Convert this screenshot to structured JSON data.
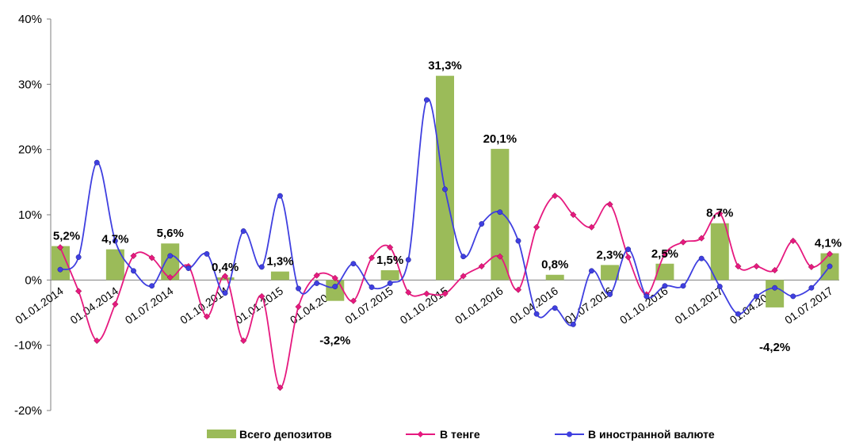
{
  "chart_data": {
    "type": "bar+line",
    "title": "",
    "xlabel": "",
    "ylabel": "",
    "ylim": [
      -20,
      40
    ],
    "y_ticks": [
      "-20%",
      "-10%",
      "0%",
      "10%",
      "20%",
      "30%",
      "40%"
    ],
    "x_tick_labels": [
      "01.01.2014",
      "01.04.2014",
      "01.07.2014",
      "01.10.2014",
      "01.01.2015",
      "01.04.2015",
      "01.07.2015",
      "01.10.2015",
      "01.01.2016",
      "01.04.2016",
      "01.07.2016",
      "01.10.2016",
      "01.01.2017",
      "01.04.2017",
      "01.07.2017"
    ],
    "grid": false,
    "legend_position": "bottom",
    "colors": {
      "bars": "#9BBB59",
      "tenge": "#E6197F",
      "foreign": "#3F3FE0"
    },
    "bars": {
      "name": "Всего депозитов",
      "labels": [
        "5,2%",
        "4,7%",
        "5,6%",
        "0,4%",
        "1,3%",
        "-3,2%",
        "1,5%",
        "31,3%",
        "20,1%",
        "0,8%",
        "2,3%",
        "2,5%",
        "8,7%",
        "-4,2%",
        "4,1%"
      ],
      "values": [
        5.2,
        4.7,
        5.6,
        0.4,
        1.3,
        -3.2,
        1.5,
        31.3,
        20.1,
        0.8,
        2.3,
        2.5,
        8.7,
        -4.2,
        4.1
      ]
    },
    "series": [
      {
        "name": "В тенге",
        "values": [
          5.0,
          -1.7,
          -9.3,
          -3.7,
          3.7,
          3.4,
          0.4,
          2.1,
          -5.6,
          0.6,
          -9.3,
          -2.5,
          -16.5,
          -4.1,
          0.7,
          0.3,
          -3.2,
          3.4,
          5.0,
          -1.9,
          -2.1,
          -2.1,
          0.6,
          2.1,
          3.6,
          -1.5,
          8.1,
          12.9,
          10.0,
          8.1,
          11.6,
          3.5,
          -2.2,
          4.0,
          5.8,
          6.4,
          10.2,
          2.1,
          2.1,
          1.5,
          6.0,
          2.0,
          4.0
        ]
      },
      {
        "name": "В иностранной валюте",
        "values": [
          1.6,
          3.5,
          18.0,
          6.0,
          1.4,
          -0.9,
          3.7,
          1.8,
          4.0,
          -2.0,
          7.5,
          2.0,
          12.9,
          -1.3,
          -0.5,
          -1.0,
          2.5,
          -1.1,
          -0.5,
          3.1,
          27.6,
          13.9,
          3.6,
          8.6,
          10.4,
          6.0,
          -5.2,
          -4.3,
          -6.8,
          1.4,
          -2.2,
          4.7,
          -2.5,
          -0.9,
          -0.9,
          3.3,
          -1.0,
          -5.2,
          -2.5,
          -1.2,
          -2.5,
          -1.2,
          2.1
        ]
      }
    ]
  }
}
